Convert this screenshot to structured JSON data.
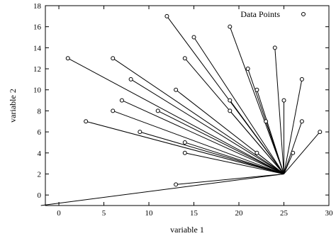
{
  "chart_data": {
    "type": "scatter",
    "xlabel": "variable 1",
    "ylabel": "variable 2",
    "xlim": [
      -1.5,
      30
    ],
    "ylim": [
      -1,
      18
    ],
    "xticks": [
      0,
      5,
      10,
      15,
      20,
      25,
      30
    ],
    "yticks": [
      0,
      2,
      4,
      6,
      8,
      10,
      12,
      14,
      16,
      18
    ],
    "grid": false,
    "legend_position": "top-right",
    "hub": [
      25,
      2
    ],
    "series": [
      {
        "name": "Data Points",
        "marker": "open-circle",
        "color": "#000000",
        "x": [
          -2,
          1,
          3,
          6,
          6,
          7,
          8,
          9,
          11,
          12,
          13,
          13,
          14,
          14,
          14,
          15,
          19,
          19,
          19,
          21,
          22,
          22,
          23,
          24,
          25,
          26,
          27,
          27,
          29
        ],
        "y": [
          -1,
          13,
          7,
          13,
          8,
          9,
          11,
          6,
          8,
          17,
          1,
          10,
          13,
          5,
          4,
          15,
          16,
          9,
          8,
          12,
          10,
          4,
          7,
          14,
          9,
          4,
          11,
          7,
          6
        ]
      }
    ]
  }
}
